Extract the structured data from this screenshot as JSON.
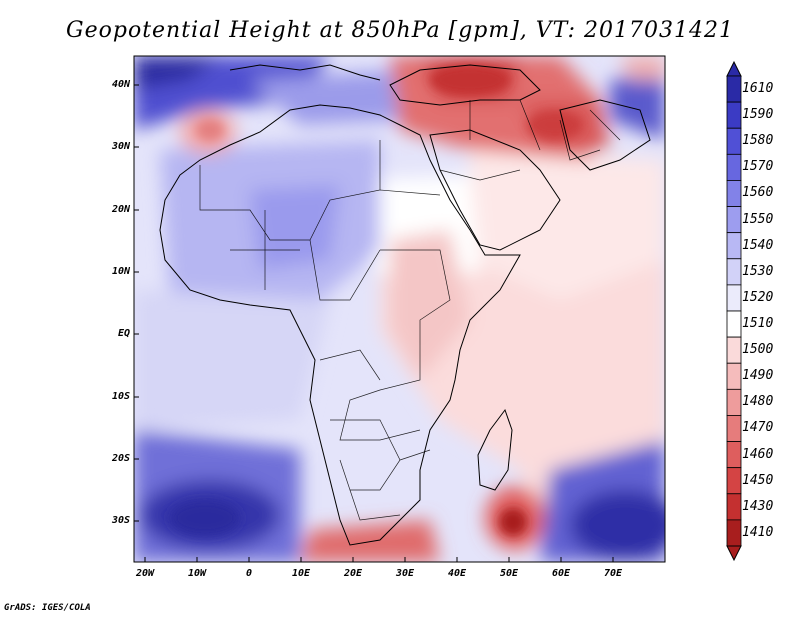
{
  "title": "Geopotential Height at 850hPa [gpm], VT: 2017031421",
  "credit": "GrADS: IGES/COLA",
  "map": {
    "variable": "Geopotential Height",
    "level": "850hPa",
    "units": "gpm",
    "valid_time": "2017031421",
    "lat_labels": [
      "40N",
      "30N",
      "20N",
      "10N",
      "EQ",
      "10S",
      "20S",
      "30S"
    ],
    "lon_labels": [
      "20W",
      "10W",
      "0",
      "10E",
      "20E",
      "30E",
      "40E",
      "50E",
      "60E",
      "70E"
    ]
  },
  "colorbar": {
    "labels": [
      "1610",
      "1590",
      "1580",
      "1570",
      "1560",
      "1550",
      "1540",
      "1530",
      "1520",
      "1510",
      "1500",
      "1490",
      "1480",
      "1470",
      "1460",
      "1450",
      "1430",
      "1410"
    ],
    "colors": [
      "#2a2aa6",
      "#3b3bc4",
      "#5050d6",
      "#6767e0",
      "#8282e8",
      "#9d9def",
      "#b8b8f4",
      "#d2d2f8",
      "#ebebfb",
      "#ffffff",
      "#fadada",
      "#f5bcbc",
      "#ee9c9c",
      "#e67c7c",
      "#de5e5e",
      "#d44444",
      "#c43030",
      "#a81e1e"
    ]
  }
}
